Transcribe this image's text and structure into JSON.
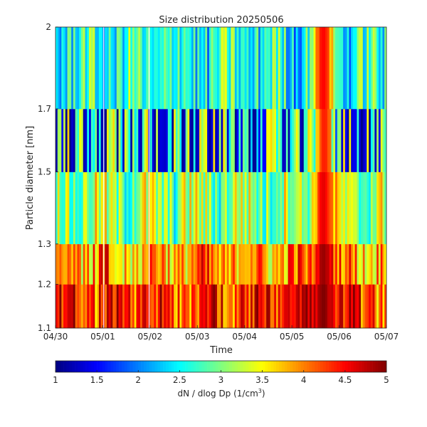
{
  "chart_data": {
    "type": "heatmap",
    "title": "Size distribution  20250506",
    "xlabel": "Time",
    "ylabel": "Particle diameter [nm]",
    "xticks": [
      "04/30",
      "05/01",
      "05/02",
      "05/03",
      "05/04",
      "05/05",
      "05/06",
      "05/07"
    ],
    "xlim": [
      "04/30",
      "05/07"
    ],
    "size_bins_nm": [
      1.1,
      1.2,
      1.3,
      1.5,
      1.7,
      2
    ],
    "yticks": [
      "1.1",
      "1.2",
      "1.3",
      "1.5",
      "1.7",
      "2"
    ],
    "colorbar": {
      "label": "dN / dlog Dp (1/cm",
      "label_sup": "3",
      "label_end": ")",
      "range": [
        1,
        5
      ],
      "ticks": [
        "1",
        "1.5",
        "2",
        "2.5",
        "3",
        "3.5",
        "4",
        "4.5",
        "5"
      ],
      "colormap": "jet"
    },
    "time_steps": 168,
    "row_mean_values": [
      4.3,
      3.9,
      3.1,
      2.0,
      2.6
    ],
    "pattern": {
      "gaps_at_days": [
        1.02,
        1.98
      ],
      "peak_center_day": 5.67,
      "peak_width_days": 0.22,
      "peak_row_values": [
        5.0,
        4.9,
        4.6,
        4.4,
        4.5
      ]
    }
  }
}
